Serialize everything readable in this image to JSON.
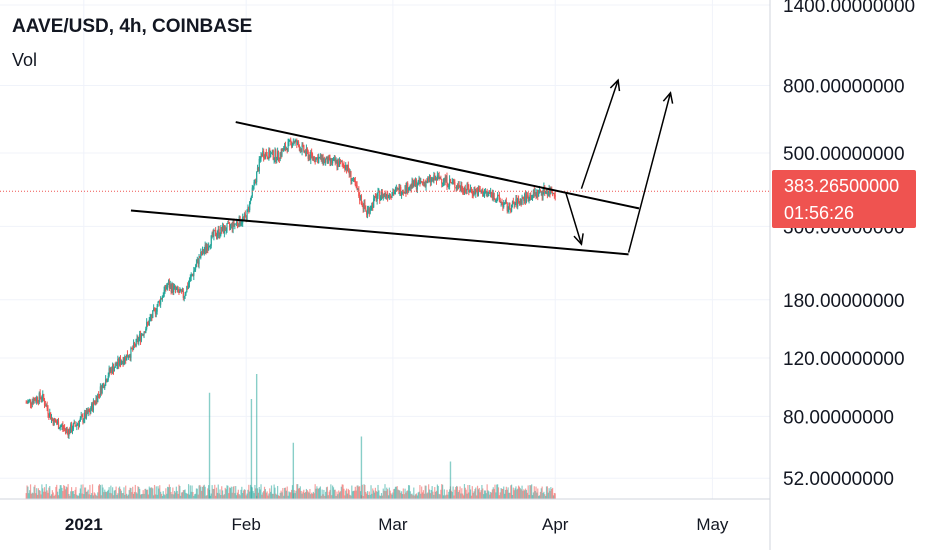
{
  "header": {
    "symbol": "AAVE/USD, 4h, COINBASE",
    "volume_label": "Vol"
  },
  "last_price": {
    "value": "383.26500000",
    "countdown": "01:56:26"
  },
  "colors": {
    "up": "#26a69a",
    "down": "#ef5350",
    "price_line": "#ef5350",
    "grid": "#f0f3fa"
  },
  "chart_data": {
    "type": "candlestick",
    "title": "AAVE/USD, 4h, COINBASE",
    "y_scale": "log",
    "ylim": [
      45,
      1450
    ],
    "y_ticks": [
      {
        "value": 1400,
        "label": "1400.00000000"
      },
      {
        "value": 800,
        "label": "800.00000000"
      },
      {
        "value": 500,
        "label": "500.00000000"
      },
      {
        "value": 300,
        "label": "300.00000000"
      },
      {
        "value": 180,
        "label": "180.00000000"
      },
      {
        "value": 120,
        "label": "120.00000000"
      },
      {
        "value": 80,
        "label": "80.00000000"
      },
      {
        "value": 52,
        "label": "52.00000000"
      }
    ],
    "x_ticks": [
      {
        "date": "2021-01-01",
        "label": "2021"
      },
      {
        "date": "2021-02-01",
        "label": "Feb"
      },
      {
        "date": "2021-03-01",
        "label": "Mar"
      },
      {
        "date": "2021-04-01",
        "label": "Apr"
      },
      {
        "date": "2021-05-01",
        "label": "May"
      }
    ],
    "xlim": [
      "2020-12-16",
      "2021-05-12"
    ],
    "price_path": [
      {
        "date": "2020-12-21",
        "price": 88
      },
      {
        "date": "2020-12-24",
        "price": 92
      },
      {
        "date": "2020-12-26",
        "price": 78
      },
      {
        "date": "2020-12-29",
        "price": 72
      },
      {
        "date": "2021-01-02",
        "price": 82
      },
      {
        "date": "2021-01-06",
        "price": 110
      },
      {
        "date": "2021-01-10",
        "price": 125
      },
      {
        "date": "2021-01-14",
        "price": 160
      },
      {
        "date": "2021-01-17",
        "price": 200
      },
      {
        "date": "2021-01-20",
        "price": 185
      },
      {
        "date": "2021-01-23",
        "price": 240
      },
      {
        "date": "2021-01-26",
        "price": 285
      },
      {
        "date": "2021-01-29",
        "price": 300
      },
      {
        "date": "2021-02-01",
        "price": 320
      },
      {
        "date": "2021-02-04",
        "price": 500
      },
      {
        "date": "2021-02-07",
        "price": 490
      },
      {
        "date": "2021-02-10",
        "price": 545
      },
      {
        "date": "2021-02-13",
        "price": 490
      },
      {
        "date": "2021-02-17",
        "price": 470
      },
      {
        "date": "2021-02-20",
        "price": 460
      },
      {
        "date": "2021-02-24",
        "price": 330
      },
      {
        "date": "2021-02-26",
        "price": 370
      },
      {
        "date": "2021-03-01",
        "price": 380
      },
      {
        "date": "2021-03-05",
        "price": 400
      },
      {
        "date": "2021-03-10",
        "price": 420
      },
      {
        "date": "2021-03-13",
        "price": 400
      },
      {
        "date": "2021-03-16",
        "price": 385
      },
      {
        "date": "2021-03-20",
        "price": 375
      },
      {
        "date": "2021-03-23",
        "price": 340
      },
      {
        "date": "2021-03-26",
        "price": 365
      },
      {
        "date": "2021-03-30",
        "price": 385
      },
      {
        "date": "2021-04-01",
        "price": 383
      }
    ],
    "volume_spikes": [
      {
        "date": "2021-01-25",
        "level": 0.85
      },
      {
        "date": "2021-02-03",
        "level": 1.0
      },
      {
        "date": "2021-02-02",
        "level": 0.8
      },
      {
        "date": "2021-02-10",
        "level": 0.45
      },
      {
        "date": "2021-02-23",
        "level": 0.5
      },
      {
        "date": "2021-03-12",
        "level": 0.3
      }
    ],
    "trendlines": [
      {
        "from": {
          "date": "2021-01-30",
          "price": 620
        },
        "to": {
          "date": "2021-04-17",
          "price": 340
        }
      },
      {
        "from": {
          "date": "2021-01-10",
          "price": 335
        },
        "to": {
          "date": "2021-04-15",
          "price": 247
        }
      }
    ],
    "arrows": [
      {
        "from": {
          "date": "2021-04-03",
          "price": 380
        },
        "to": {
          "date": "2021-04-06",
          "price": 265
        }
      },
      {
        "from": {
          "date": "2021-04-06",
          "price": 390
        },
        "to": {
          "date": "2021-04-13",
          "price": 830
        }
      },
      {
        "from": {
          "date": "2021-04-15",
          "price": 250
        },
        "to": {
          "date": "2021-04-23",
          "price": 760
        }
      }
    ],
    "grid": true
  }
}
